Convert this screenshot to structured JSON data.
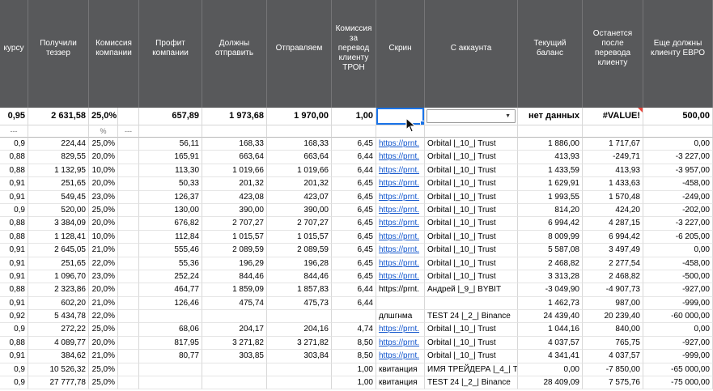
{
  "sheet": {
    "columns": [
      "курсу",
      "Получили теззер",
      "Комиссия компании",
      "Профит компании",
      "Должны отправить",
      "Отправляем",
      "Комиссия за перевод клиенту ТРОН",
      "Скрин",
      "С аккаунта",
      "Текущий баланс",
      "Останется после перевода клиенту",
      "Еще должны клиенту ЕВРО"
    ],
    "summary_row": {
      "rate": "0,95",
      "received": "2 631,58",
      "commission": "25,0%",
      "profit": "657,89",
      "must_send": "1 973,68",
      "sending": "1 970,00",
      "tron_fee": "1,00",
      "screen": "",
      "account": "",
      "balance": "нет данных",
      "after_transfer": "#VALUE!",
      "owed_eur": "500,00"
    },
    "marker_row": {
      "rate": "---",
      "commission": "%",
      "spacer": "---"
    },
    "rows": [
      [
        "0,9",
        "224,44",
        "25,0%",
        "56,11",
        "168,33",
        "168,33",
        "6,45",
        "https://prnt.",
        "link",
        "Orbital |_10_| Trust",
        "1 886,00",
        "1 717,67",
        "0,00"
      ],
      [
        "0,88",
        "829,55",
        "20,0%",
        "165,91",
        "663,64",
        "663,64",
        "6,44",
        "https://prnt.",
        "link",
        "Orbital |_10_| Trust",
        "413,93",
        "-249,71",
        "-3 227,00"
      ],
      [
        "0,88",
        "1 132,95",
        "10,0%",
        "113,30",
        "1 019,66",
        "1 019,66",
        "6,44",
        "https://prnt.",
        "link",
        "Orbital |_10_| Trust",
        "1 433,59",
        "413,93",
        "-3 957,00"
      ],
      [
        "0,91",
        "251,65",
        "20,0%",
        "50,33",
        "201,32",
        "201,32",
        "6,45",
        "https://prnt.",
        "link",
        "Orbital |_10_| Trust",
        "1 629,91",
        "1 433,63",
        "-458,00"
      ],
      [
        "0,91",
        "549,45",
        "23,0%",
        "126,37",
        "423,08",
        "423,07",
        "6,45",
        "https://prnt.",
        "link",
        "Orbital |_10_| Trust",
        "1 993,55",
        "1 570,48",
        "-249,00"
      ],
      [
        "0,9",
        "520,00",
        "25,0%",
        "130,00",
        "390,00",
        "390,00",
        "6,45",
        "https://prnt.",
        "link",
        "Orbital |_10_| Trust",
        "814,20",
        "424,20",
        "-202,00"
      ],
      [
        "0,88",
        "3 384,09",
        "20,0%",
        "676,82",
        "2 707,27",
        "2 707,27",
        "6,45",
        "https://prnt.",
        "link",
        "Orbital |_10_| Trust",
        "6 994,42",
        "4 287,15",
        "-3 227,00"
      ],
      [
        "0,88",
        "1 128,41",
        "10,0%",
        "112,84",
        "1 015,57",
        "1 015,57",
        "6,45",
        "https://prnt.",
        "link",
        "Orbital |_10_| Trust",
        "8 009,99",
        "6 994,42",
        "-6 205,00"
      ],
      [
        "0,91",
        "2 645,05",
        "21,0%",
        "555,46",
        "2 089,59",
        "2 089,59",
        "6,45",
        "https://prnt.",
        "link",
        "Orbital |_10_| Trust",
        "5 587,08",
        "3 497,49",
        "0,00"
      ],
      [
        "0,91",
        "251,65",
        "22,0%",
        "55,36",
        "196,29",
        "196,28",
        "6,45",
        "https://prnt.",
        "link",
        "Orbital |_10_| Trust",
        "2 468,82",
        "2 277,54",
        "-458,00"
      ],
      [
        "0,91",
        "1 096,70",
        "23,0%",
        "252,24",
        "844,46",
        "844,46",
        "6,45",
        "https://prnt.",
        "link",
        "Orbital |_10_| Trust",
        "3 313,28",
        "2 468,82",
        "-500,00"
      ],
      [
        "0,88",
        "2 323,86",
        "20,0%",
        "464,77",
        "1 859,09",
        "1 857,83",
        "6,44",
        "https://prnt.",
        "plain",
        "Андрей |_9_| BYBIT",
        "-3 049,90",
        "-4 907,73",
        "-927,00"
      ],
      [
        "0,91",
        "602,20",
        "21,0%",
        "126,46",
        "475,74",
        "475,73",
        "6,44",
        "",
        "empty",
        "",
        "1 462,73",
        "987,00",
        "-999,00"
      ],
      [
        "0,92",
        "5 434,78",
        "22,0%",
        "",
        "",
        "",
        "",
        "длшгнма",
        "plain",
        "TEST 24 |_2_| Binance",
        "24 439,40",
        "20 239,40",
        "-60 000,00"
      ],
      [
        "0,9",
        "272,22",
        "25,0%",
        "68,06",
        "204,17",
        "204,16",
        "4,74",
        "https://prnt.",
        "link",
        "Orbital |_10_| Trust",
        "1 044,16",
        "840,00",
        "0,00"
      ],
      [
        "0,88",
        "4 089,77",
        "20,0%",
        "817,95",
        "3 271,82",
        "3 271,82",
        "8,50",
        "https://prnt.",
        "link",
        "Orbital |_10_| Trust",
        "4 037,57",
        "765,75",
        "-927,00"
      ],
      [
        "0,91",
        "384,62",
        "21,0%",
        "80,77",
        "303,85",
        "303,84",
        "8,50",
        "https://prnt.",
        "link",
        "Orbital |_10_| Trust",
        "4 341,41",
        "4 037,57",
        "-999,00"
      ],
      [
        "0,9",
        "10 526,32",
        "25,0%",
        "",
        "",
        "",
        "1,00",
        "квитанция",
        "plain",
        "ИМЯ ТРЕЙДЕРА |_4_| Т",
        "0,00",
        "-7 850,00",
        "-65 000,00"
      ],
      [
        "0,9",
        "27 777,78",
        "25,0%",
        "",
        "",
        "",
        "1,00",
        "квитанция",
        "plain",
        "TEST 24 |_2_| Binance",
        "28 409,09",
        "7 575,76",
        "-75 000,00"
      ]
    ],
    "colors": {
      "header_bg": "#58595b",
      "link": "#1155cc",
      "selection": "#1a73e8",
      "error_marker": "#e8443a"
    }
  }
}
